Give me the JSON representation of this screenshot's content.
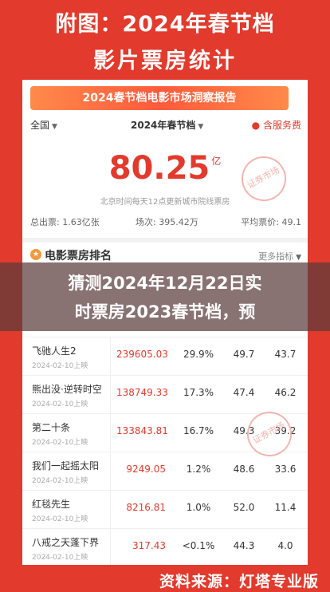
{
  "header": {
    "line1": "附图：2024年春节档",
    "line2": "影片票房统计"
  },
  "banner": {
    "text": "2024春节档电影市场洞察报告"
  },
  "filters": {
    "region": "全国",
    "period": "2024年春节档",
    "service_fee": "含服务费"
  },
  "summary": {
    "value": "80.25",
    "unit": "亿",
    "note": "北京时间每天12点更新城市院线票房",
    "total_tickets": "总出票: 1.63亿张",
    "screenings": "场次: 395.42万",
    "avg_price": "平均票价: 49.1"
  },
  "stamp": {
    "text": "证券市场"
  },
  "ranking": {
    "title": "电影票房排名",
    "more": "更多指标"
  },
  "overlay": {
    "line1": "猜测2024年12月22日实",
    "line2": "时票房2023春节档，预"
  },
  "rows": [
    {
      "name": "飞驰人生2",
      "date": "2024-02-10上映",
      "box": "239605.03",
      "share": "29.9%",
      "price": "49.7",
      "other": "43.7"
    },
    {
      "name": "熊出没·逆转时空",
      "date": "2024-02-10上映",
      "box": "138749.33",
      "share": "17.3%",
      "price": "47.4",
      "other": "46.2"
    },
    {
      "name": "第二十条",
      "date": "2024-02-10上映",
      "box": "133843.81",
      "share": "16.7%",
      "price": "49.3",
      "other": "39.2"
    },
    {
      "name": "我们一起摇太阳",
      "date": "2024-02-10上映",
      "box": "9249.05",
      "share": "1.2%",
      "price": "48.6",
      "other": "33.6"
    },
    {
      "name": "红毯先生",
      "date": "2024-02-10上映",
      "box": "8216.81",
      "share": "1.0%",
      "price": "52.0",
      "other": "11.4"
    },
    {
      "name": "八戒之天蓬下界",
      "date": "2024-02-10上映",
      "box": "317.43",
      "share": "<0.1%",
      "price": "44.3",
      "other": "4.0"
    }
  ],
  "footer": {
    "source": "资料来源：灯塔专业版"
  },
  "colors": {
    "accent": "#e23a2c",
    "banner": "#ff6a3c"
  },
  "icons": {
    "service": "fee-icon",
    "rank": "rank-icon"
  }
}
